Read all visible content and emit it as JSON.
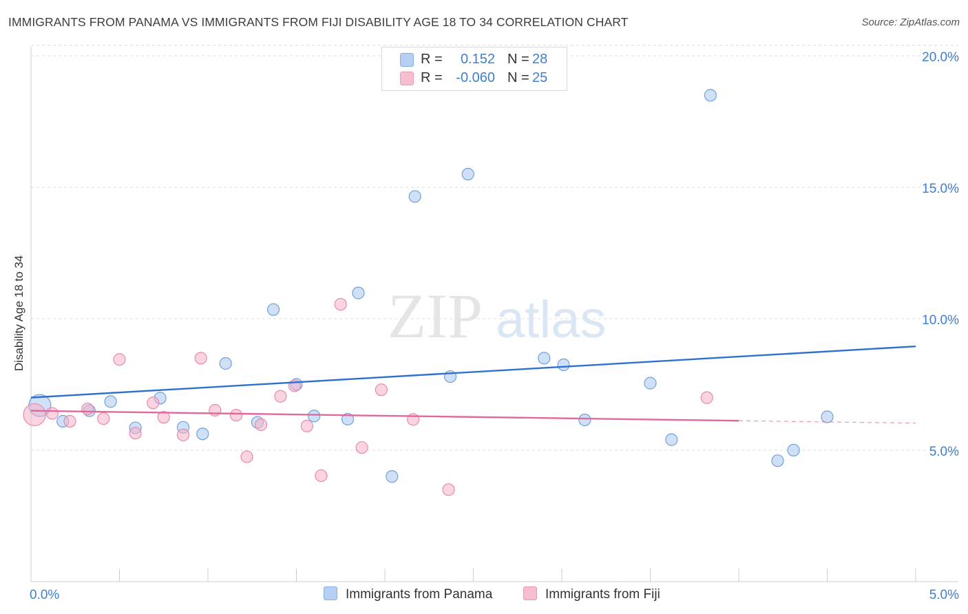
{
  "header": {
    "title": "IMMIGRANTS FROM PANAMA VS IMMIGRANTS FROM FIJI DISABILITY AGE 18 TO 34 CORRELATION CHART",
    "source": "Source: ZipAtlas.com"
  },
  "watermark": {
    "zip": "ZIP",
    "atlas": "atlas"
  },
  "legend": {
    "rows": [
      {
        "r_label": "R =",
        "r_value": "0.152",
        "n_label": "N =",
        "n_value": "28",
        "color": "#a9c8f0"
      },
      {
        "r_label": "R =",
        "r_value": "-0.060",
        "n_label": "N =",
        "n_value": "25",
        "color": "#f5b3c8"
      }
    ]
  },
  "chart_data": {
    "type": "scatter",
    "title": "IMMIGRANTS FROM PANAMA VS IMMIGRANTS FROM FIJI DISABILITY AGE 18 TO 34 CORRELATION CHART",
    "xlabel": "",
    "ylabel": "Disability Age 18 to 34",
    "xlim": [
      0,
      5
    ],
    "ylim": [
      0,
      20.5
    ],
    "x_tick_labels": [
      "0.0%",
      "5.0%"
    ],
    "y_ticks": [
      5,
      10,
      15,
      20
    ],
    "y_tick_labels": [
      "5.0%",
      "10.0%",
      "15.0%",
      "20.0%"
    ],
    "grid": true,
    "legend_position": "top-center",
    "series": [
      {
        "name": "Immigrants from Panama",
        "color": "#a9c8f0",
        "stroke": "#6fa0dc",
        "line_color": "#2f6fcf",
        "trend": {
          "x": [
            0.0,
            5.0
          ],
          "y": [
            7.0,
            8.95
          ]
        },
        "points": [
          {
            "x": 0.05,
            "y": 6.7,
            "big": true
          },
          {
            "x": 0.18,
            "y": 6.1
          },
          {
            "x": 0.33,
            "y": 6.5
          },
          {
            "x": 0.45,
            "y": 6.85
          },
          {
            "x": 0.59,
            "y": 5.85
          },
          {
            "x": 0.73,
            "y": 6.98
          },
          {
            "x": 0.86,
            "y": 5.87
          },
          {
            "x": 0.97,
            "y": 5.62
          },
          {
            "x": 1.1,
            "y": 8.3
          },
          {
            "x": 1.28,
            "y": 6.06
          },
          {
            "x": 1.37,
            "y": 10.35
          },
          {
            "x": 1.5,
            "y": 7.5
          },
          {
            "x": 1.6,
            "y": 6.3
          },
          {
            "x": 1.79,
            "y": 6.18
          },
          {
            "x": 1.85,
            "y": 10.98
          },
          {
            "x": 2.04,
            "y": 4.0
          },
          {
            "x": 2.17,
            "y": 14.65
          },
          {
            "x": 2.37,
            "y": 7.8
          },
          {
            "x": 2.47,
            "y": 15.5
          },
          {
            "x": 2.9,
            "y": 8.5
          },
          {
            "x": 3.01,
            "y": 8.25
          },
          {
            "x": 3.13,
            "y": 6.15
          },
          {
            "x": 3.5,
            "y": 7.55
          },
          {
            "x": 3.62,
            "y": 5.4
          },
          {
            "x": 3.84,
            "y": 18.5
          },
          {
            "x": 4.22,
            "y": 4.6
          },
          {
            "x": 4.31,
            "y": 5.0
          },
          {
            "x": 4.5,
            "y": 6.27
          }
        ]
      },
      {
        "name": "Immigrants from Fiji",
        "color": "#f5b3c8",
        "stroke": "#e68aa8",
        "line_color": "#e0689a",
        "trend": {
          "x": [
            0.0,
            4.0
          ],
          "y": [
            6.5,
            6.12
          ]
        },
        "trend_dashed": {
          "x": [
            4.0,
            5.0
          ],
          "y": [
            6.12,
            6.03
          ]
        },
        "points": [
          {
            "x": 0.02,
            "y": 6.35,
            "big": true
          },
          {
            "x": 0.12,
            "y": 6.4
          },
          {
            "x": 0.22,
            "y": 6.1
          },
          {
            "x": 0.32,
            "y": 6.57
          },
          {
            "x": 0.41,
            "y": 6.2
          },
          {
            "x": 0.5,
            "y": 8.45
          },
          {
            "x": 0.59,
            "y": 5.65
          },
          {
            "x": 0.69,
            "y": 6.8
          },
          {
            "x": 0.75,
            "y": 6.25
          },
          {
            "x": 0.86,
            "y": 5.58
          },
          {
            "x": 0.96,
            "y": 8.5
          },
          {
            "x": 1.04,
            "y": 6.52
          },
          {
            "x": 1.16,
            "y": 6.33
          },
          {
            "x": 1.22,
            "y": 4.75
          },
          {
            "x": 1.3,
            "y": 5.97
          },
          {
            "x": 1.41,
            "y": 7.05
          },
          {
            "x": 1.49,
            "y": 7.45
          },
          {
            "x": 1.56,
            "y": 5.92
          },
          {
            "x": 1.64,
            "y": 4.03
          },
          {
            "x": 1.75,
            "y": 10.55
          },
          {
            "x": 1.87,
            "y": 5.1
          },
          {
            "x": 1.98,
            "y": 7.3
          },
          {
            "x": 2.16,
            "y": 6.17
          },
          {
            "x": 2.36,
            "y": 3.5
          },
          {
            "x": 3.82,
            "y": 7.0
          }
        ]
      }
    ]
  }
}
